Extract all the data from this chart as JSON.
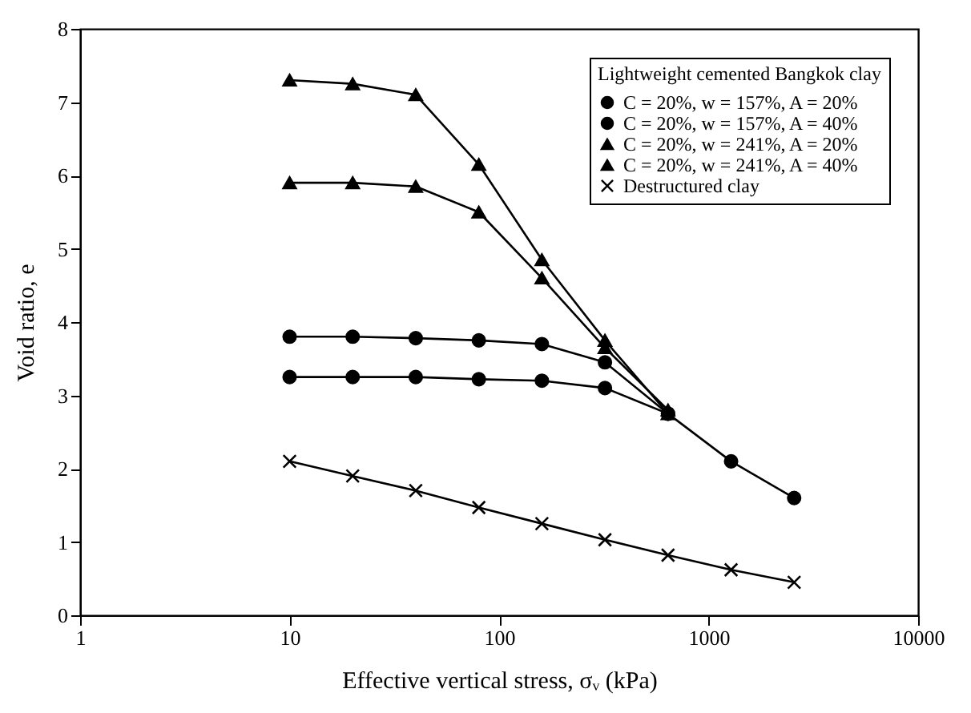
{
  "chart_data": {
    "type": "line",
    "xlabel": "Effective vertical stress,  σᵥ (kPa)",
    "ylabel": "Void ratio, e",
    "legend_title": "Lightweight cemented Bangkok clay",
    "log": "x",
    "xlim": [
      1,
      10000
    ],
    "xticks": [
      1,
      10,
      100,
      1000,
      10000
    ],
    "ylim": [
      0,
      8
    ],
    "yticks": [
      0,
      1,
      2,
      3,
      4,
      5,
      6,
      7,
      8
    ],
    "grid": false,
    "legend": "top right",
    "series": [
      {
        "name": "C = 20%, w = 157%, A = 20%",
        "color": "#000000",
        "marker": "circle",
        "line_style": "solid",
        "x": [
          10,
          20,
          40,
          80,
          160,
          320,
          640
        ],
        "values": [
          3.25,
          3.25,
          3.25,
          3.22,
          3.2,
          3.1,
          2.75
        ]
      },
      {
        "name": "C = 20%, w = 157%, A = 40%",
        "color": "#000000",
        "marker": "circle",
        "line_style": "solid",
        "x": [
          10,
          20,
          40,
          80,
          160,
          320,
          640,
          1280,
          2560
        ],
        "values": [
          3.8,
          3.8,
          3.78,
          3.75,
          3.7,
          3.45,
          2.75,
          2.1,
          1.6
        ]
      },
      {
        "name": "C = 20%, w = 241%, A = 20%",
        "color": "#000000",
        "marker": "triangle",
        "line_style": "solid",
        "x": [
          10,
          20,
          40,
          80,
          160,
          320,
          640
        ],
        "values": [
          5.9,
          5.9,
          5.85,
          5.5,
          4.6,
          3.65,
          2.8
        ]
      },
      {
        "name": "C = 20%, w = 241%, A = 40%",
        "color": "#000000",
        "marker": "triangle",
        "line_style": "solid",
        "x": [
          10,
          20,
          40,
          80,
          160,
          320,
          640
        ],
        "values": [
          7.3,
          7.25,
          7.1,
          6.15,
          4.85,
          3.75,
          2.75
        ]
      },
      {
        "name": "Destructured clay",
        "color": "#000000",
        "marker": "cross",
        "line_style": "solid",
        "x": [
          10,
          20,
          40,
          80,
          160,
          320,
          640,
          1280,
          2560
        ],
        "values": [
          2.1,
          1.9,
          1.7,
          1.47,
          1.25,
          1.03,
          0.82,
          0.62,
          0.45
        ]
      }
    ]
  }
}
